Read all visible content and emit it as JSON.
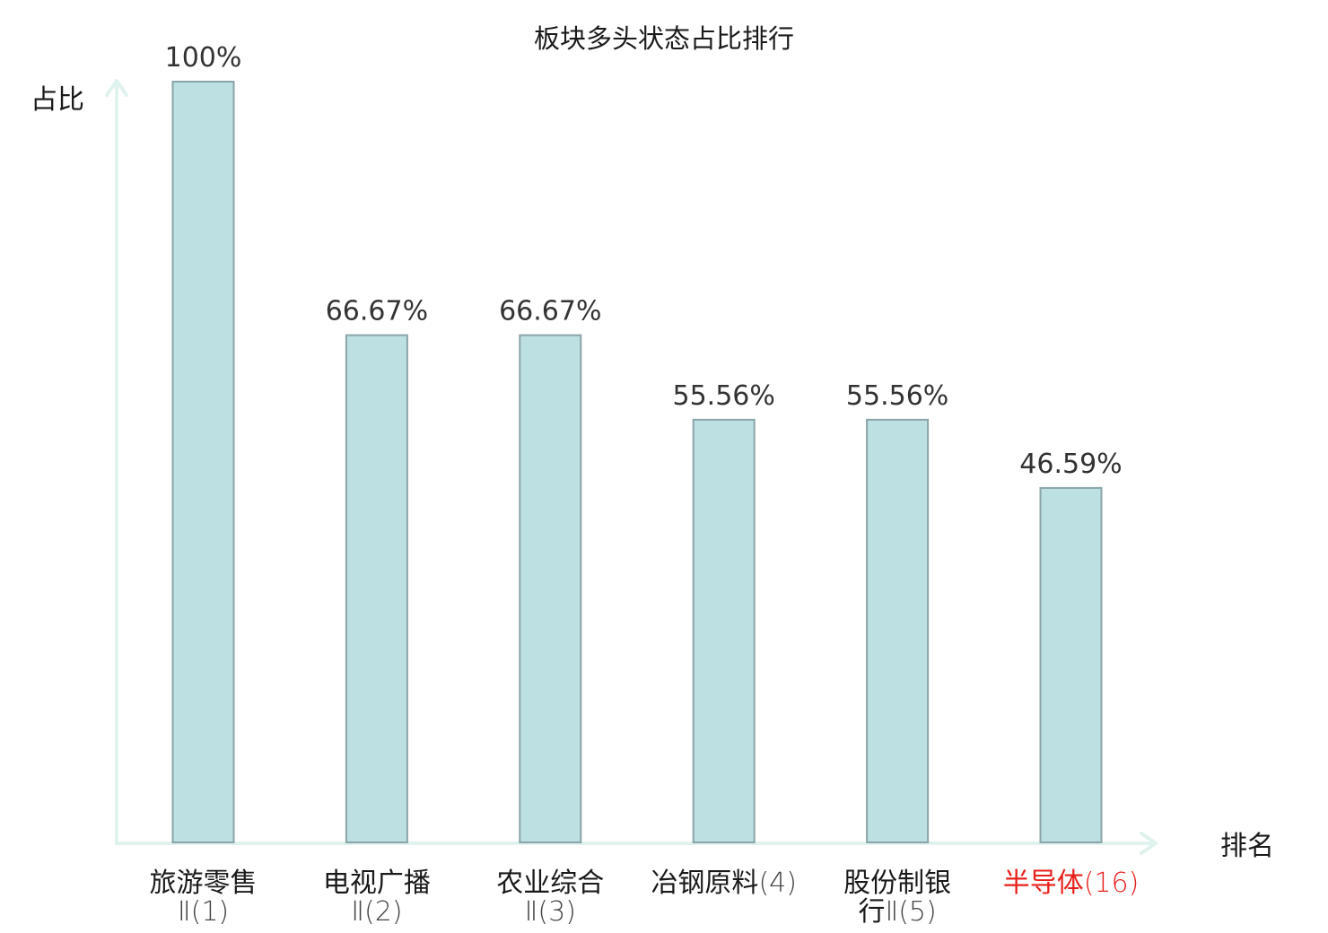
{
  "chart_data": {
    "type": "bar",
    "title": "板块多头状态占比排行",
    "ylabel": "占比",
    "xlabel": "排名",
    "ylim": [
      0,
      100
    ],
    "grid": false,
    "categories": [
      {
        "name": "旅游零售Ⅱ",
        "rank": "(1)",
        "lines": [
          {
            "parts": [
              {
                "t": "旅游零售"
              }
            ]
          },
          {
            "parts": [
              {
                "t": "Ⅱ(1)",
                "light": true
              }
            ]
          }
        ],
        "highlight": false
      },
      {
        "name": "电视广播Ⅱ",
        "rank": "(2)",
        "lines": [
          {
            "parts": [
              {
                "t": "电视广播"
              }
            ]
          },
          {
            "parts": [
              {
                "t": "Ⅱ(2)",
                "light": true
              }
            ]
          }
        ],
        "highlight": false
      },
      {
        "name": "农业综合Ⅱ",
        "rank": "(3)",
        "lines": [
          {
            "parts": [
              {
                "t": "农业综合"
              }
            ]
          },
          {
            "parts": [
              {
                "t": "Ⅱ(3)",
                "light": true
              }
            ]
          }
        ],
        "highlight": false
      },
      {
        "name": "冶钢原料",
        "rank": "(4)",
        "lines": [
          {
            "parts": [
              {
                "t": "冶钢原料"
              },
              {
                "t": "(4)",
                "light": true
              }
            ]
          }
        ],
        "highlight": false
      },
      {
        "name": "股份制银行Ⅱ",
        "rank": "(5)",
        "lines": [
          {
            "parts": [
              {
                "t": "股份制银"
              }
            ]
          },
          {
            "parts": [
              {
                "t": "行"
              },
              {
                "t": "Ⅱ(5)",
                "light": true
              }
            ]
          }
        ],
        "highlight": false
      },
      {
        "name": "半导体",
        "rank": "(16)",
        "lines": [
          {
            "parts": [
              {
                "t": "半导体"
              },
              {
                "t": "(16)",
                "light": true
              }
            ]
          }
        ],
        "highlight": true
      }
    ],
    "values": [
      100,
      66.67,
      66.67,
      55.56,
      55.56,
      46.59
    ],
    "value_labels": [
      "100%",
      "66.67%",
      "66.67%",
      "55.56%",
      "55.56%",
      "46.59%"
    ],
    "colors": {
      "bar_fill": "#bde0e3",
      "bar_stroke": "#8aa5a8",
      "axis": "#dff2ee",
      "text": "#1a1a1a",
      "text_light": "#444444",
      "highlight": "#e8201b"
    }
  }
}
